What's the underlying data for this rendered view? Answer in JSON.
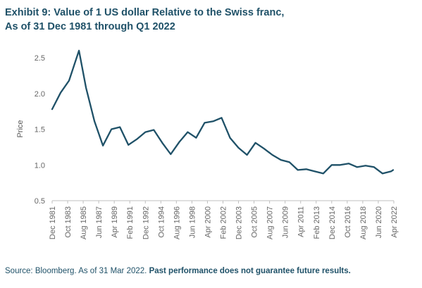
{
  "chart_data": {
    "type": "line",
    "title": "Exhibit 9: Value of 1 US dollar Relative to the Swiss franc,",
    "subtitle": "As of 31 Dec 1981 through Q1 2022",
    "xlabel": "",
    "ylabel": "Price",
    "ylim": [
      0.5,
      2.5
    ],
    "yticks": [
      "0.5",
      "1.0",
      "1.5",
      "2.0",
      "2.5"
    ],
    "grid": false,
    "line_color": "#1f5168",
    "x_tick_labels": [
      "Dec 1981",
      "Oct 1983",
      "Aug 1985",
      "Jun 1987",
      "Apr 1989",
      "Feb 1991",
      "Dec 1992",
      "Oct 1994",
      "Aug 1996",
      "Jun 1998",
      "Apr 2000",
      "Feb 2002",
      "Dec 2003",
      "Oct 2005",
      "Aug 2007",
      "Jun 2009",
      "Apr 2011",
      "Feb 2013",
      "Dec 2014",
      "Oct 2016",
      "Aug 2018",
      "Jun 2020",
      "Apr 2022"
    ],
    "series": [
      {
        "name": "",
        "x": [
          "Dec 1981",
          "Dec 1982",
          "Dec 1983",
          "Feb 1985",
          "Dec 1985",
          "Dec 1986",
          "Dec 1987",
          "Dec 1988",
          "Dec 1989",
          "Dec 1990",
          "Dec 1991",
          "Dec 1992",
          "Dec 1993",
          "Dec 1994",
          "Dec 1995",
          "Dec 1996",
          "Dec 1997",
          "Dec 1998",
          "Dec 1999",
          "Dec 2000",
          "Dec 2001",
          "Dec 2002",
          "Dec 2003",
          "Dec 2004",
          "Dec 2005",
          "Dec 2006",
          "Dec 2007",
          "Dec 2008",
          "Dec 2009",
          "Dec 2010",
          "Dec 2011",
          "Dec 2012",
          "Dec 2013",
          "Dec 2014",
          "Dec 2015",
          "Dec 2016",
          "Dec 2017",
          "Dec 2018",
          "Dec 2019",
          "Dec 2020",
          "Dec 2021",
          "Mar 2022"
        ],
        "values": [
          1.78,
          2.01,
          2.18,
          2.6,
          2.08,
          1.61,
          1.27,
          1.5,
          1.53,
          1.28,
          1.36,
          1.46,
          1.49,
          1.31,
          1.15,
          1.32,
          1.46,
          1.38,
          1.59,
          1.61,
          1.66,
          1.38,
          1.24,
          1.14,
          1.31,
          1.23,
          1.14,
          1.07,
          1.04,
          0.93,
          0.94,
          0.91,
          0.88,
          1.0,
          1.0,
          1.02,
          0.97,
          0.99,
          0.97,
          0.88,
          0.91,
          0.93
        ]
      }
    ]
  },
  "source": {
    "text": "Source: Bloomberg. As of 31 Mar 2022. ",
    "disclaimer": "Past performance does not guarantee future results."
  }
}
